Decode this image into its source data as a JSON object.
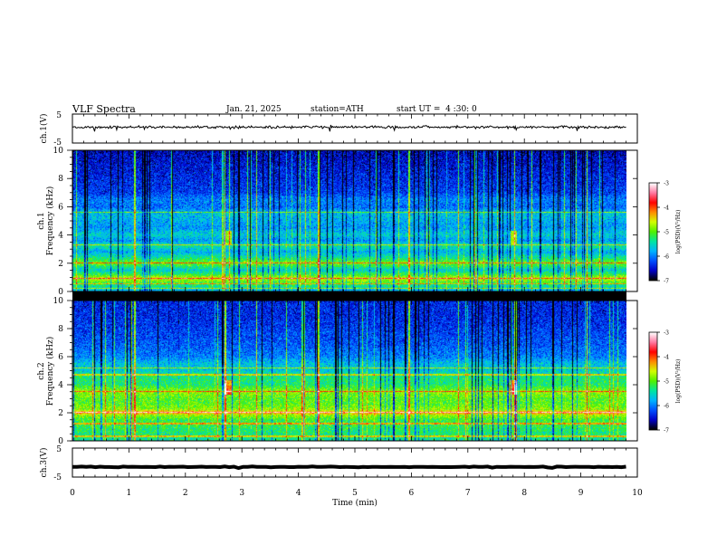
{
  "header": {
    "title": "VLF Spectra",
    "date": "Jan. 21, 2025",
    "station": "station=ATH",
    "start_ut": "start UT =  4 :30: 0"
  },
  "colors": {
    "background": "#ffffff",
    "axes": "#000000",
    "colormap": [
      "#000000",
      "#0000c8",
      "#0050ff",
      "#00b4ff",
      "#00e6a0",
      "#50f000",
      "#d2ff00",
      "#ff8c00",
      "#ff0000",
      "#ff78a0",
      "#ffffff"
    ]
  },
  "chart_data": [
    {
      "type": "line",
      "name": "ch1-waveform",
      "ylabel": "ch.1(V)",
      "ylim": [
        -5,
        5
      ],
      "yticks": [
        "5",
        "-5"
      ],
      "xlim": [
        0,
        10
      ],
      "baseline_value": 0.5,
      "amplitude": 0.5
    },
    {
      "type": "heatmap",
      "name": "ch1-spectrogram",
      "ylabel": "Frequency (kHz)",
      "channel_label": "ch.1",
      "ylim": [
        0,
        10
      ],
      "yticks": [
        "0",
        "2",
        "4",
        "6",
        "8",
        "10"
      ],
      "xlim": [
        0,
        10
      ],
      "data_end_min": 9.8,
      "colorbar": {
        "label": "log(PSD)(V²/Hz)",
        "range": [
          -7,
          -3
        ],
        "ticks": [
          "-3",
          "-4",
          "-5",
          "-6",
          "-7"
        ]
      },
      "psd_profile": {
        "freq_khz": [
          0,
          0.5,
          0.9,
          1.2,
          1.5,
          2.0,
          2.4,
          2.8,
          3.2,
          3.6,
          4.0,
          4.5,
          5.0,
          5.5,
          6.0,
          6.5,
          7.0,
          8.0,
          9.0,
          10.0
        ],
        "log_psd": [
          -5.8,
          -5.2,
          -4.6,
          -5.2,
          -5.6,
          -4.9,
          -5.4,
          -5.8,
          -5.4,
          -5.9,
          -5.6,
          -5.9,
          -5.8,
          -5.7,
          -6.1,
          -6.0,
          -6.3,
          -6.4,
          -6.5,
          -6.6
        ]
      },
      "tone_lines_khz": [
        0.2,
        0.5,
        0.9,
        2.0,
        3.3,
        5.6
      ],
      "pulse_times_min": [
        1.1,
        2.7,
        3.25,
        4.35,
        5.95,
        7.82,
        9.1
      ],
      "event_times_min": [
        2.75,
        7.8
      ],
      "event_freq_khz": 3.8
    },
    {
      "type": "heatmap",
      "name": "ch2-spectrogram",
      "ylabel": "Frequency (kHz)",
      "channel_label": "ch.2",
      "ylim": [
        0,
        10
      ],
      "yticks": [
        "0",
        "2",
        "4",
        "6",
        "8",
        "10"
      ],
      "xlim": [
        0,
        10
      ],
      "data_end_min": 9.8,
      "colorbar": {
        "label": "log(PSD)(V²/Hz)",
        "range": [
          -7,
          -3
        ],
        "ticks": [
          "-3",
          "-4",
          "-5",
          "-6",
          "-7"
        ]
      },
      "psd_profile": {
        "freq_khz": [
          0,
          0.5,
          1.0,
          1.5,
          1.8,
          2.0,
          2.2,
          2.6,
          3.0,
          3.5,
          4.0,
          4.5,
          5.0,
          5.5,
          6.0,
          7.0,
          8.0,
          9.0,
          10.0
        ],
        "log_psd": [
          -5.4,
          -5.3,
          -5.2,
          -5.1,
          -4.8,
          -4.1,
          -4.8,
          -5.0,
          -5.0,
          -4.8,
          -5.3,
          -5.3,
          -5.6,
          -5.7,
          -6.0,
          -6.2,
          -6.3,
          -6.4,
          -6.4
        ]
      },
      "tone_lines_khz": [
        0.3,
        1.2,
        2.0,
        3.5,
        4.7,
        5.2
      ],
      "pulse_times_min": [
        1.1,
        2.7,
        3.25,
        4.35,
        5.95,
        7.82,
        9.1
      ],
      "event_times_min": [
        2.75,
        7.8
      ],
      "event_freq_khz": 3.8
    },
    {
      "type": "line",
      "name": "ch3-waveform",
      "ylabel": "ch.3(V)",
      "ylim": [
        -5,
        5
      ],
      "yticks": [
        "5",
        "-5"
      ],
      "xlim": [
        0,
        10
      ],
      "xlabel": "Time (min)",
      "xticks": [
        "0",
        "1",
        "2",
        "3",
        "4",
        "5",
        "6",
        "7",
        "8",
        "9",
        "10"
      ],
      "baseline_value": -1.5,
      "amplitude": 0.15
    }
  ]
}
